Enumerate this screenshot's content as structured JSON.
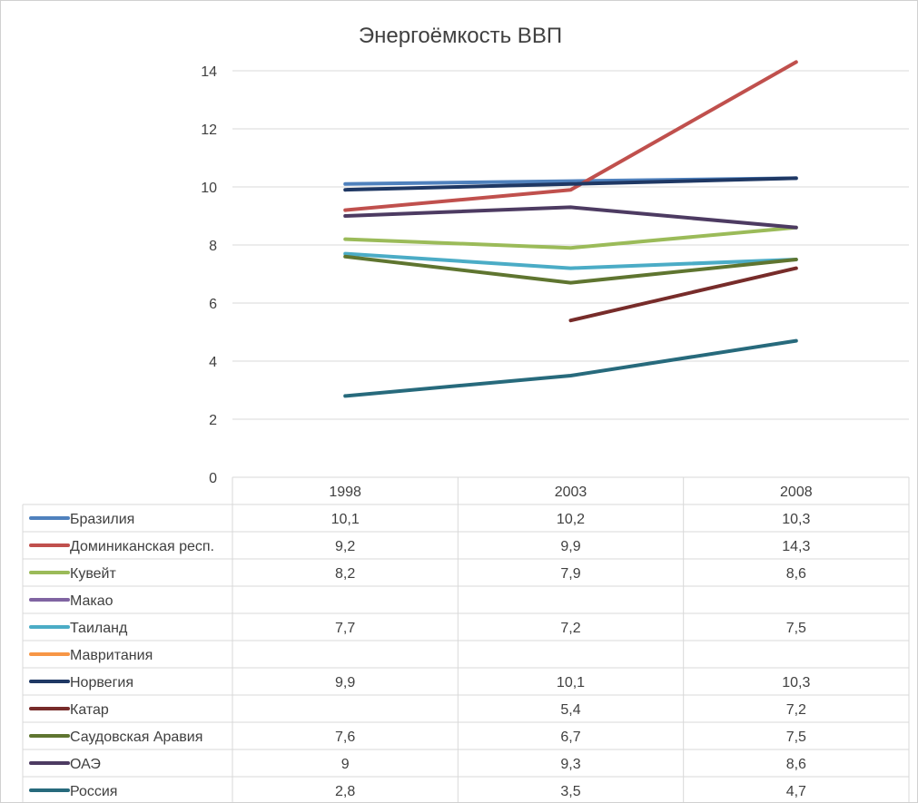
{
  "chart_data": {
    "type": "line",
    "title": "Энергоёмкость ВВП",
    "categories": [
      "1998",
      "2003",
      "2008"
    ],
    "ylim": [
      0,
      14
    ],
    "yticks": [
      0,
      2,
      4,
      6,
      8,
      10,
      12,
      14
    ],
    "grid": true,
    "legend": "data-table-bottom",
    "series": [
      {
        "name": "Бразилия",
        "color": "#4f81bd",
        "values": [
          10.1,
          10.2,
          10.3
        ],
        "labels": [
          "10,1",
          "10,2",
          "10,3"
        ]
      },
      {
        "name": "Доминиканская респ.",
        "color": "#c0504d",
        "values": [
          9.2,
          9.9,
          14.3
        ],
        "labels": [
          "9,2",
          "9,9",
          "14,3"
        ]
      },
      {
        "name": "Кувейт",
        "color": "#9bbb59",
        "values": [
          8.2,
          7.9,
          8.6
        ],
        "labels": [
          "8,2",
          "7,9",
          "8,6"
        ]
      },
      {
        "name": "Макао",
        "color": "#8064a2",
        "values": [
          null,
          null,
          null
        ],
        "labels": [
          "",
          "",
          ""
        ]
      },
      {
        "name": "Таиланд",
        "color": "#4bacc6",
        "values": [
          7.7,
          7.2,
          7.5
        ],
        "labels": [
          "7,7",
          "7,2",
          "7,5"
        ]
      },
      {
        "name": "Мавритания",
        "color": "#f79646",
        "values": [
          null,
          null,
          null
        ],
        "labels": [
          "",
          "",
          ""
        ]
      },
      {
        "name": "Норвегия",
        "color": "#1f3864",
        "values": [
          9.9,
          10.1,
          10.3
        ],
        "labels": [
          "9,9",
          "10,1",
          "10,3"
        ]
      },
      {
        "name": "Катар",
        "color": "#772c2a",
        "values": [
          null,
          5.4,
          7.2
        ],
        "labels": [
          "",
          "5,4",
          "7,2"
        ]
      },
      {
        "name": "Саудовская Аравия",
        "color": "#5f7530",
        "values": [
          7.6,
          6.7,
          7.5
        ],
        "labels": [
          "7,6",
          "6,7",
          "7,5"
        ]
      },
      {
        "name": "ОАЭ",
        "color": "#4d3b62",
        "values": [
          9.0,
          9.3,
          8.6
        ],
        "labels": [
          "9",
          "9,3",
          "8,6"
        ]
      },
      {
        "name": "Россия",
        "color": "#276a7c",
        "values": [
          2.8,
          3.5,
          4.7
        ],
        "labels": [
          "2,8",
          "3,5",
          "4,7"
        ]
      }
    ]
  }
}
